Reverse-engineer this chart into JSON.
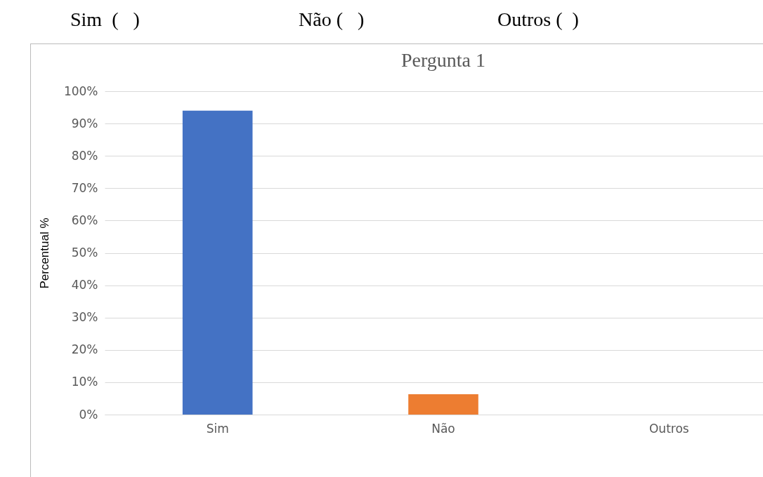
{
  "chart_data": {
    "type": "bar",
    "title": "Pergunta  1",
    "ylabel": "Percentual %",
    "annotations": [
      "Sim  (   )",
      "Não (   )",
      "Outros (  )"
    ],
    "categories": [
      "Sim",
      "Não",
      "Outros"
    ],
    "values": [
      94,
      6.3,
      0
    ],
    "colors": [
      "#4472c4",
      "#ed7d31",
      "#a5a5a5"
    ],
    "ylim": [
      0,
      100
    ],
    "yticks": [
      {
        "value": 0,
        "label": "0%"
      },
      {
        "value": 10,
        "label": "10%"
      },
      {
        "value": 20,
        "label": "20%"
      },
      {
        "value": 30,
        "label": "30%"
      },
      {
        "value": 40,
        "label": "40%"
      },
      {
        "value": 50,
        "label": "50%"
      },
      {
        "value": 60,
        "label": "60%"
      },
      {
        "value": 70,
        "label": "70%"
      },
      {
        "value": 80,
        "label": "80%"
      },
      {
        "value": 90,
        "label": "90%"
      },
      {
        "value": 100,
        "label": "100%"
      }
    ],
    "grid": "y",
    "legend": false
  }
}
